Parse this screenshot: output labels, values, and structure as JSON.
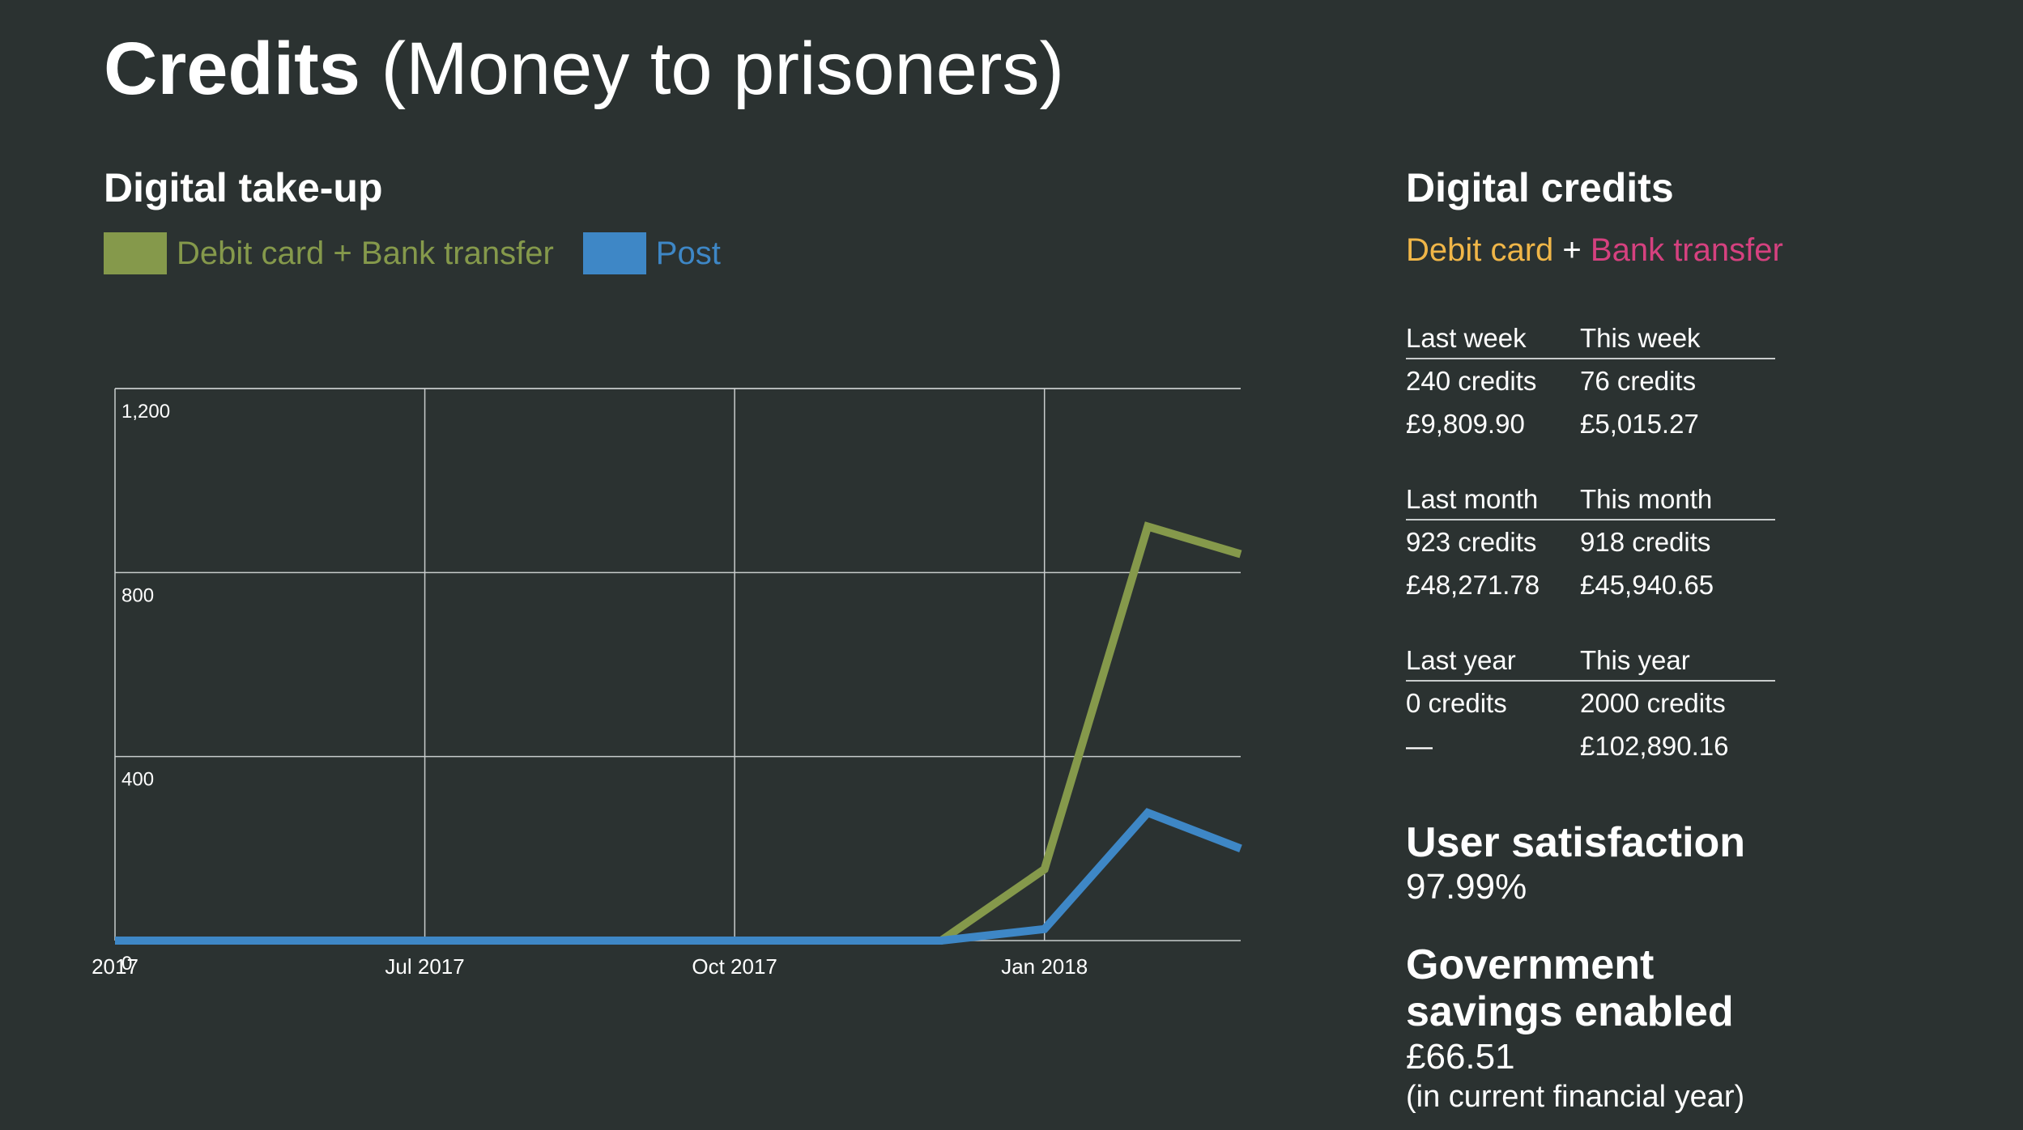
{
  "header": {
    "title_strong": "Credits",
    "title_rest": "(Money to prisoners)"
  },
  "takeup": {
    "title": "Digital take-up",
    "legend": [
      {
        "label": "Debit card + Bank transfer",
        "color": "#85994b"
      },
      {
        "label": "Post",
        "color": "#3e87c6"
      }
    ]
  },
  "chart_data": {
    "type": "line",
    "title": "Digital take-up",
    "xlabel": "",
    "ylabel": "",
    "ylim": [
      0,
      1200
    ],
    "y_ticks": [
      {
        "value": 0,
        "label": "0"
      },
      {
        "value": 400,
        "label": "400"
      },
      {
        "value": 800,
        "label": "800"
      },
      {
        "value": 1200,
        "label": "1,200"
      }
    ],
    "x_ticks": [
      {
        "value": 0,
        "label": "2017"
      },
      {
        "value": 3,
        "label": "Jul 2017"
      },
      {
        "value": 6,
        "label": "Oct 2017"
      },
      {
        "value": 9,
        "label": "Jan 2018"
      }
    ],
    "xlim": [
      0,
      10.9
    ],
    "grid": true,
    "series": [
      {
        "name": "Debit card + Bank transfer",
        "color": "#85994b",
        "x": [
          0,
          1,
          2,
          3,
          4,
          5,
          6,
          7,
          8,
          9,
          10,
          10.9
        ],
        "y": [
          0,
          0,
          0,
          0,
          0,
          0,
          0,
          0,
          0,
          155,
          900,
          840
        ]
      },
      {
        "name": "Post",
        "color": "#3e87c6",
        "x": [
          0,
          1,
          2,
          3,
          4,
          5,
          6,
          7,
          8,
          9,
          10,
          10.9
        ],
        "y": [
          0,
          0,
          0,
          0,
          0,
          0,
          0,
          0,
          0,
          25,
          278,
          200
        ]
      }
    ]
  },
  "digital_credits": {
    "title": "Digital credits",
    "subtitle_a": "Debit card",
    "subtitle_plus": " + ",
    "subtitle_b": "Bank transfer",
    "color_a": "#f0b648",
    "color_b": "#d5417f",
    "weekly": {
      "head_left": "Last week",
      "head_right": "This week",
      "rows": [
        {
          "left": "240 credits",
          "right": "76 credits"
        },
        {
          "left": "£9,809.90",
          "right": "£5,015.27"
        }
      ]
    },
    "monthly": {
      "head_left": "Last month",
      "head_right": "This month",
      "rows": [
        {
          "left": "923 credits",
          "right": "918 credits"
        },
        {
          "left": "£48,271.78",
          "right": "£45,940.65"
        }
      ]
    },
    "yearly": {
      "head_left": "Last year",
      "head_right": "This year",
      "rows": [
        {
          "left": "0 credits",
          "right": "2000 credits"
        },
        {
          "left": "—",
          "right": "£102,890.16"
        }
      ]
    }
  },
  "satisfaction": {
    "title": "User satisfaction",
    "value": "97.99%"
  },
  "savings": {
    "title_line1": "Government",
    "title_line2": "savings enabled",
    "value": "£66.51",
    "note": "(in current financial year)"
  }
}
